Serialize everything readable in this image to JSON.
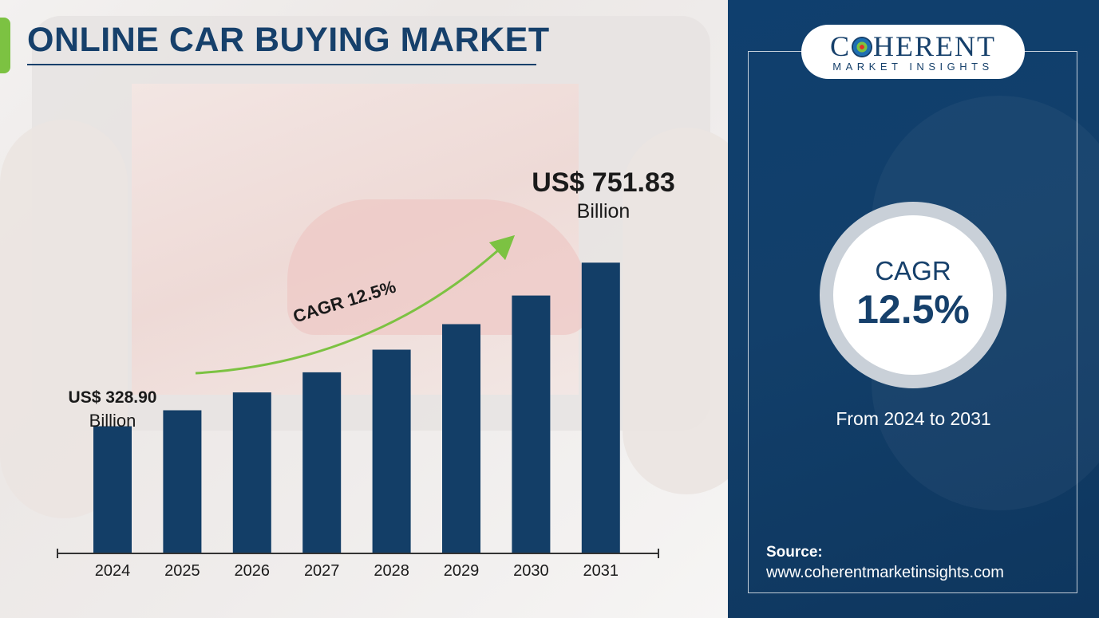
{
  "title": "ONLINE CAR BUYING MARKET",
  "chart_data": {
    "type": "bar",
    "categories": [
      "2024",
      "2025",
      "2026",
      "2027",
      "2028",
      "2029",
      "2030",
      "2031"
    ],
    "values": [
      328.9,
      370.0,
      416.3,
      468.3,
      526.9,
      592.7,
      666.8,
      751.83
    ],
    "ylim": [
      0,
      800
    ],
    "grid": false,
    "legend": "none",
    "annotations": {
      "start_value": "US$ 328.90",
      "start_unit": "Billion",
      "end_value": "US$ 751.83",
      "end_unit": "Billion",
      "arrow_label": "CAGR 12.5%"
    },
    "colors": {
      "bar": "#133e67",
      "arrow": "#7cc242",
      "axis": "#333333"
    }
  },
  "logo": {
    "main_left": "C",
    "main_right": "HERENT",
    "sub": "MARKET INSIGHTS"
  },
  "cagr": {
    "title": "CAGR",
    "value": "12.5%"
  },
  "period": "From 2024 to 2031",
  "source": {
    "label": "Source:",
    "url": "www.coherentmarketinsights.com"
  },
  "colors": {
    "navy": "#16406b",
    "accent_green": "#7cc242",
    "panel": "#123f6a"
  }
}
